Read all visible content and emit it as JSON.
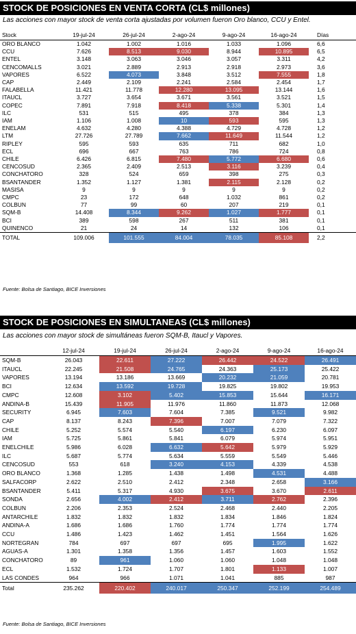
{
  "section1": {
    "title": "STOCK DE POSICIONES EN VENTA CORTA (CL$ millones)",
    "subtitle": "Las acciones con mayor stock de venta corta ajustadas por volumen fueron Oro blanco, CCU y Entel.",
    "headers": [
      "Stock",
      "19-jul-24",
      "26-jul-24",
      "2-ago-24",
      "9-ago-24",
      "16-ago-24",
      "Días"
    ],
    "rows": [
      {
        "name": "ORO BLANCO",
        "vals": [
          "1.042",
          "1.002",
          "1.016",
          "1.033",
          "1.096"
        ],
        "hl": [
          "",
          "",
          "",
          "",
          ""
        ],
        "days": "6,6"
      },
      {
        "name": "CCU",
        "vals": [
          "7.626",
          "8.513",
          "9.030",
          "8.944",
          "10.895"
        ],
        "hl": [
          "",
          "red",
          "red",
          "",
          "red"
        ],
        "days": "6,5"
      },
      {
        "name": "ENTEL",
        "vals": [
          "3.148",
          "3.063",
          "3.046",
          "3.057",
          "3.311"
        ],
        "hl": [
          "",
          "",
          "",
          "",
          ""
        ],
        "days": "4,2"
      },
      {
        "name": "CENCOMALLS",
        "vals": [
          "3.021",
          "2.889",
          "2.913",
          "2.918",
          "2.973"
        ],
        "hl": [
          "",
          "",
          "",
          "",
          ""
        ],
        "days": "3,6"
      },
      {
        "name": "VAPORES",
        "vals": [
          "6.522",
          "4.073",
          "3.848",
          "3.512",
          "7.555"
        ],
        "hl": [
          "",
          "blue",
          "",
          "",
          "red"
        ],
        "days": "1,8"
      },
      {
        "name": "CAP",
        "vals": [
          "2.449",
          "2.109",
          "2.241",
          "2.584",
          "2.454"
        ],
        "hl": [
          "",
          "",
          "",
          "",
          ""
        ],
        "days": "1,7"
      },
      {
        "name": "FALABELLA",
        "vals": [
          "11.421",
          "11.778",
          "12.280",
          "13.095",
          "13.144"
        ],
        "hl": [
          "",
          "",
          "red",
          "red",
          ""
        ],
        "days": "1,6"
      },
      {
        "name": "ITAUCL",
        "vals": [
          "3.727",
          "3.654",
          "3.671",
          "3.561",
          "3.521"
        ],
        "hl": [
          "",
          "",
          "",
          "",
          ""
        ],
        "days": "1,5"
      },
      {
        "name": "COPEC",
        "vals": [
          "7.891",
          "7.918",
          "8.418",
          "5.338",
          "5.301"
        ],
        "hl": [
          "",
          "",
          "red",
          "blue",
          ""
        ],
        "days": "1,4"
      },
      {
        "name": "ILC",
        "vals": [
          "531",
          "515",
          "495",
          "378",
          "384"
        ],
        "hl": [
          "",
          "",
          "",
          "",
          ""
        ],
        "days": "1,3"
      },
      {
        "name": "IAM",
        "vals": [
          "1.106",
          "1.008",
          "10",
          "593",
          "595"
        ],
        "hl": [
          "",
          "",
          "blue",
          "red",
          ""
        ],
        "days": "1,3"
      },
      {
        "name": "ENELAM",
        "vals": [
          "4.632",
          "4.280",
          "4.388",
          "4.729",
          "4.728"
        ],
        "hl": [
          "",
          "",
          "",
          "",
          ""
        ],
        "days": "1,2"
      },
      {
        "name": "LTM",
        "vals": [
          "27.726",
          "27.789",
          "7.662",
          "11.649",
          "11.544"
        ],
        "hl": [
          "",
          "",
          "blue",
          "red",
          ""
        ],
        "days": "1,2"
      },
      {
        "name": "RIPLEY",
        "vals": [
          "595",
          "593",
          "635",
          "711",
          "682"
        ],
        "hl": [
          "",
          "",
          "",
          "",
          ""
        ],
        "days": "1,0"
      },
      {
        "name": "ECL",
        "vals": [
          "696",
          "667",
          "763",
          "786",
          "724"
        ],
        "hl": [
          "",
          "",
          "",
          "",
          ""
        ],
        "days": "0,8"
      },
      {
        "name": "CHILE",
        "vals": [
          "6.426",
          "6.815",
          "7.480",
          "5.772",
          "6.680"
        ],
        "hl": [
          "",
          "",
          "red",
          "blue",
          "red"
        ],
        "days": "0,6"
      },
      {
        "name": "CENCOSUD",
        "vals": [
          "2.365",
          "2.409",
          "2.513",
          "3.116",
          "3.239"
        ],
        "hl": [
          "",
          "",
          "",
          "red",
          ""
        ],
        "days": "0,4"
      },
      {
        "name": "CONCHATORO",
        "vals": [
          "328",
          "524",
          "659",
          "398",
          "275"
        ],
        "hl": [
          "",
          "",
          "",
          "",
          ""
        ],
        "days": "0,3"
      },
      {
        "name": "BSANTANDER",
        "vals": [
          "1.352",
          "1.127",
          "1.381",
          "2.115",
          "2.128"
        ],
        "hl": [
          "",
          "",
          "",
          "red",
          ""
        ],
        "days": "0,2"
      },
      {
        "name": "MASISA",
        "vals": [
          "9",
          "9",
          "9",
          "9",
          "9"
        ],
        "hl": [
          "",
          "",
          "",
          "",
          ""
        ],
        "days": "0,2"
      },
      {
        "name": "CMPC",
        "vals": [
          "23",
          "172",
          "648",
          "1.032",
          "861"
        ],
        "hl": [
          "",
          "",
          "",
          "",
          ""
        ],
        "days": "0,2"
      },
      {
        "name": "COLBUN",
        "vals": [
          "77",
          "99",
          "60",
          "207",
          "219"
        ],
        "hl": [
          "",
          "",
          "",
          "",
          ""
        ],
        "days": "0,1"
      },
      {
        "name": "SQM-B",
        "vals": [
          "14.408",
          "8.344",
          "9.262",
          "1.027",
          "1.777"
        ],
        "hl": [
          "",
          "blue",
          "red",
          "blue",
          "red"
        ],
        "days": "0,1"
      },
      {
        "name": "BCI",
        "vals": [
          "389",
          "598",
          "267",
          "511",
          "381"
        ],
        "hl": [
          "",
          "",
          "",
          "",
          ""
        ],
        "days": "0,1"
      },
      {
        "name": "QUINENCO",
        "vals": [
          "21",
          "24",
          "14",
          "132",
          "106"
        ],
        "hl": [
          "",
          "",
          "",
          "",
          ""
        ],
        "days": "0,1"
      }
    ],
    "total": {
      "name": "TOTAL",
      "vals": [
        "109.006",
        "101.555",
        "84.004",
        "78.035",
        "85.108"
      ],
      "hl": [
        "",
        "blue",
        "blue",
        "blue",
        "red"
      ],
      "days": "2,2"
    },
    "source": "Fuente: Bolsa de Santiago, BICE Inversiones"
  },
  "section2": {
    "title": "STOCK DE POSICIONES EN SIMULTANEAS (CL$ millones)",
    "subtitle": "Las acciones con mayor stock de simultáneas fueron SQM-B, Itaucl y Vapores.",
    "headers": [
      "",
      "12-jul-24",
      "19-jul-24",
      "26-jul-24",
      "2-ago-24",
      "9-ago-24",
      "16-ago-24"
    ],
    "rows": [
      {
        "name": "SQM-B",
        "vals": [
          "26.043",
          "22.611",
          "27.222",
          "26.442",
          "24.522",
          "26.491"
        ],
        "hl": [
          "",
          "red",
          "blue",
          "red",
          "red",
          "blue"
        ]
      },
      {
        "name": "ITAUCL",
        "vals": [
          "22.245",
          "21.508",
          "24.765",
          "24.363",
          "25.173",
          "25.422"
        ],
        "hl": [
          "",
          "red",
          "blue",
          "",
          "blue",
          ""
        ]
      },
      {
        "name": "VAPORES",
        "vals": [
          "13.194",
          "13.186",
          "13.669",
          "20.232",
          "21.059",
          "20.781"
        ],
        "hl": [
          "",
          "",
          "",
          "blue",
          "blue",
          ""
        ]
      },
      {
        "name": "BCI",
        "vals": [
          "12.634",
          "13.592",
          "19.728",
          "19.825",
          "19.802",
          "19.953"
        ],
        "hl": [
          "",
          "blue",
          "blue",
          "",
          "",
          ""
        ]
      },
      {
        "name": "CMPC",
        "vals": [
          "12.608",
          "3.102",
          "5.402",
          "15.853",
          "15.644",
          "16.171"
        ],
        "hl": [
          "",
          "red",
          "blue",
          "blue",
          "",
          "blue"
        ]
      },
      {
        "name": "ANDINA-B",
        "vals": [
          "15.439",
          "11.905",
          "11.976",
          "11.860",
          "11.873",
          "12.068"
        ],
        "hl": [
          "",
          "red",
          "",
          "",
          "",
          ""
        ]
      },
      {
        "name": "SECURITY",
        "vals": [
          "6.945",
          "7.603",
          "7.604",
          "7.385",
          "9.521",
          "9.982"
        ],
        "hl": [
          "",
          "blue",
          "",
          "",
          "blue",
          ""
        ]
      },
      {
        "name": "CAP",
        "vals": [
          "8.137",
          "8.243",
          "7.396",
          "7.007",
          "7.079",
          "7.322"
        ],
        "hl": [
          "",
          "",
          "red",
          "",
          "",
          ""
        ]
      },
      {
        "name": "CHILE",
        "vals": [
          "5.252",
          "5.574",
          "5.540",
          "6.197",
          "6.230",
          "6.097"
        ],
        "hl": [
          "",
          "",
          "",
          "blue",
          "",
          ""
        ]
      },
      {
        "name": "IAM",
        "vals": [
          "5.725",
          "5.861",
          "5.841",
          "6.079",
          "5.974",
          "5.951"
        ],
        "hl": [
          "",
          "",
          "",
          "",
          "",
          ""
        ]
      },
      {
        "name": "ENELCHILE",
        "vals": [
          "5.986",
          "6.028",
          "6.632",
          "5.642",
          "5.979",
          "5.929"
        ],
        "hl": [
          "",
          "",
          "blue",
          "red",
          "",
          ""
        ]
      },
      {
        "name": "ILC",
        "vals": [
          "5.687",
          "5.774",
          "5.634",
          "5.559",
          "5.549",
          "5.446"
        ],
        "hl": [
          "",
          "",
          "",
          "",
          "",
          ""
        ]
      },
      {
        "name": "CENCOSUD",
        "vals": [
          "553",
          "618",
          "3.240",
          "4.153",
          "4.339",
          "4.538"
        ],
        "hl": [
          "",
          "",
          "blue",
          "blue",
          "",
          ""
        ]
      },
      {
        "name": "ORO BLANCO",
        "vals": [
          "1.368",
          "1.285",
          "1.438",
          "1.498",
          "4.531",
          "4.488"
        ],
        "hl": [
          "",
          "",
          "",
          "",
          "blue",
          ""
        ]
      },
      {
        "name": "SALFACORP",
        "vals": [
          "2.622",
          "2.510",
          "2.412",
          "2.348",
          "2.658",
          "3.166"
        ],
        "hl": [
          "",
          "",
          "",
          "",
          "",
          "blue"
        ]
      },
      {
        "name": "BSANTANDER",
        "vals": [
          "5.411",
          "5.317",
          "4.930",
          "3.675",
          "3.670",
          "2.611"
        ],
        "hl": [
          "",
          "",
          "",
          "red",
          "",
          "red"
        ]
      },
      {
        "name": "SONDA",
        "vals": [
          "2.656",
          "4.002",
          "2.412",
          "3.711",
          "2.762",
          "2.396"
        ],
        "hl": [
          "",
          "blue",
          "red",
          "blue",
          "red",
          ""
        ]
      },
      {
        "name": "COLBUN",
        "vals": [
          "2.206",
          "2.353",
          "2.524",
          "2.468",
          "2.440",
          "2.205"
        ],
        "hl": [
          "",
          "",
          "",
          "",
          "",
          ""
        ]
      },
      {
        "name": "ANTARCHILE",
        "vals": [
          "1.832",
          "1.832",
          "1.832",
          "1.834",
          "1.846",
          "1.824"
        ],
        "hl": [
          "",
          "",
          "",
          "",
          "",
          ""
        ]
      },
      {
        "name": "ANDINA-A",
        "vals": [
          "1.686",
          "1.686",
          "1.760",
          "1.774",
          "1.774",
          "1.774"
        ],
        "hl": [
          "",
          "",
          "",
          "",
          "",
          ""
        ]
      },
      {
        "name": "CCU",
        "vals": [
          "1.486",
          "1.423",
          "1.462",
          "1.451",
          "1.564",
          "1.626"
        ],
        "hl": [
          "",
          "",
          "",
          "",
          "",
          ""
        ]
      },
      {
        "name": "NORTEGRAN",
        "vals": [
          "784",
          "697",
          "697",
          "695",
          "1.995",
          "1.622"
        ],
        "hl": [
          "",
          "",
          "",
          "",
          "blue",
          ""
        ]
      },
      {
        "name": "AGUAS-A",
        "vals": [
          "1.301",
          "1.358",
          "1.356",
          "1.457",
          "1.603",
          "1.552"
        ],
        "hl": [
          "",
          "",
          "",
          "",
          "",
          ""
        ]
      },
      {
        "name": "CONCHATORO",
        "vals": [
          "89",
          "961",
          "1.060",
          "1.060",
          "1.048",
          "1.048"
        ],
        "hl": [
          "",
          "blue",
          "",
          "",
          "",
          ""
        ]
      },
      {
        "name": "ECL",
        "vals": [
          "1.532",
          "1.724",
          "1.707",
          "1.801",
          "1.133",
          "1.007"
        ],
        "hl": [
          "",
          "",
          "",
          "",
          "red",
          ""
        ]
      },
      {
        "name": "LAS CONDES",
        "vals": [
          "964",
          "966",
          "1.071",
          "1.041",
          "885",
          "987"
        ],
        "hl": [
          "",
          "",
          "",
          "",
          "",
          ""
        ]
      }
    ],
    "total": {
      "name": "Total",
      "vals": [
        "235.262",
        "220.402",
        "240.017",
        "250.347",
        "252.199",
        "254.489"
      ],
      "hl": [
        "",
        "red",
        "blue",
        "blue",
        "blue",
        "blue"
      ]
    },
    "source": "Fuente: Bolsa de Santiago, BICE Inversiones"
  }
}
